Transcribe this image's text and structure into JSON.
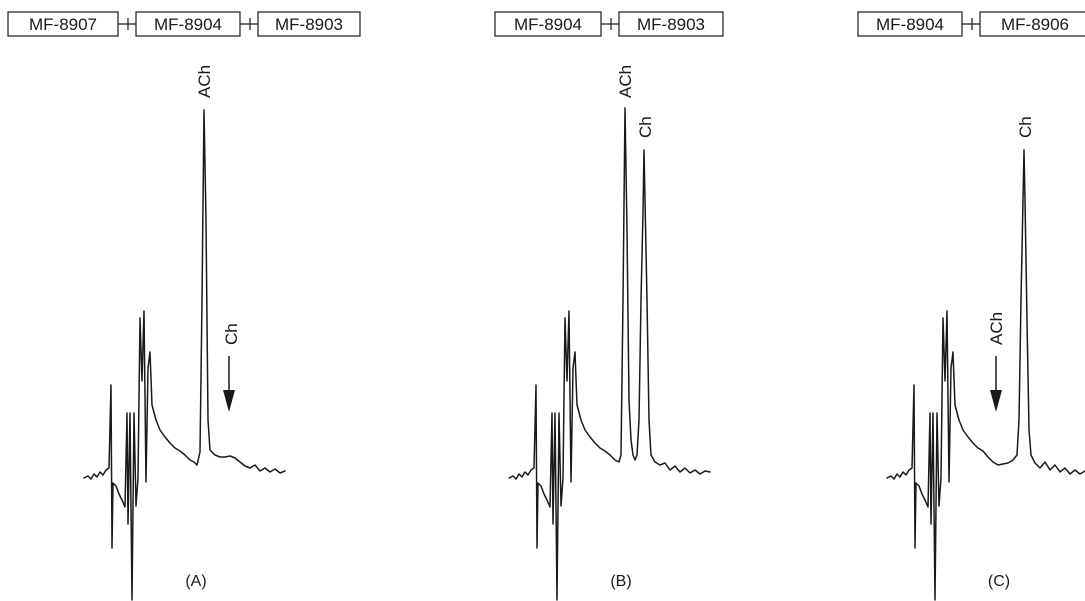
{
  "chart_data": [
    {
      "type": "line",
      "panel_label": "(A)",
      "columns": [
        "MF-8907",
        "MF-8904",
        "MF-8903"
      ],
      "peaks": [
        {
          "name": "ACh",
          "height": 1.0,
          "marker": "peak"
        },
        {
          "name": "Ch",
          "height": 0.0,
          "marker": "arrow"
        }
      ]
    },
    {
      "type": "line",
      "panel_label": "(B)",
      "columns": [
        "MF-8904",
        "MF-8903"
      ],
      "peaks": [
        {
          "name": "ACh",
          "height": 1.0,
          "marker": "peak"
        },
        {
          "name": "Ch",
          "height": 0.82,
          "marker": "peak"
        }
      ]
    },
    {
      "type": "line",
      "panel_label": "(C)",
      "columns": [
        "MF-8904",
        "MF-8906"
      ],
      "peaks": [
        {
          "name": "ACh",
          "height": 0.0,
          "marker": "arrow"
        },
        {
          "name": "Ch",
          "height": 0.95,
          "marker": "peak"
        }
      ]
    }
  ]
}
